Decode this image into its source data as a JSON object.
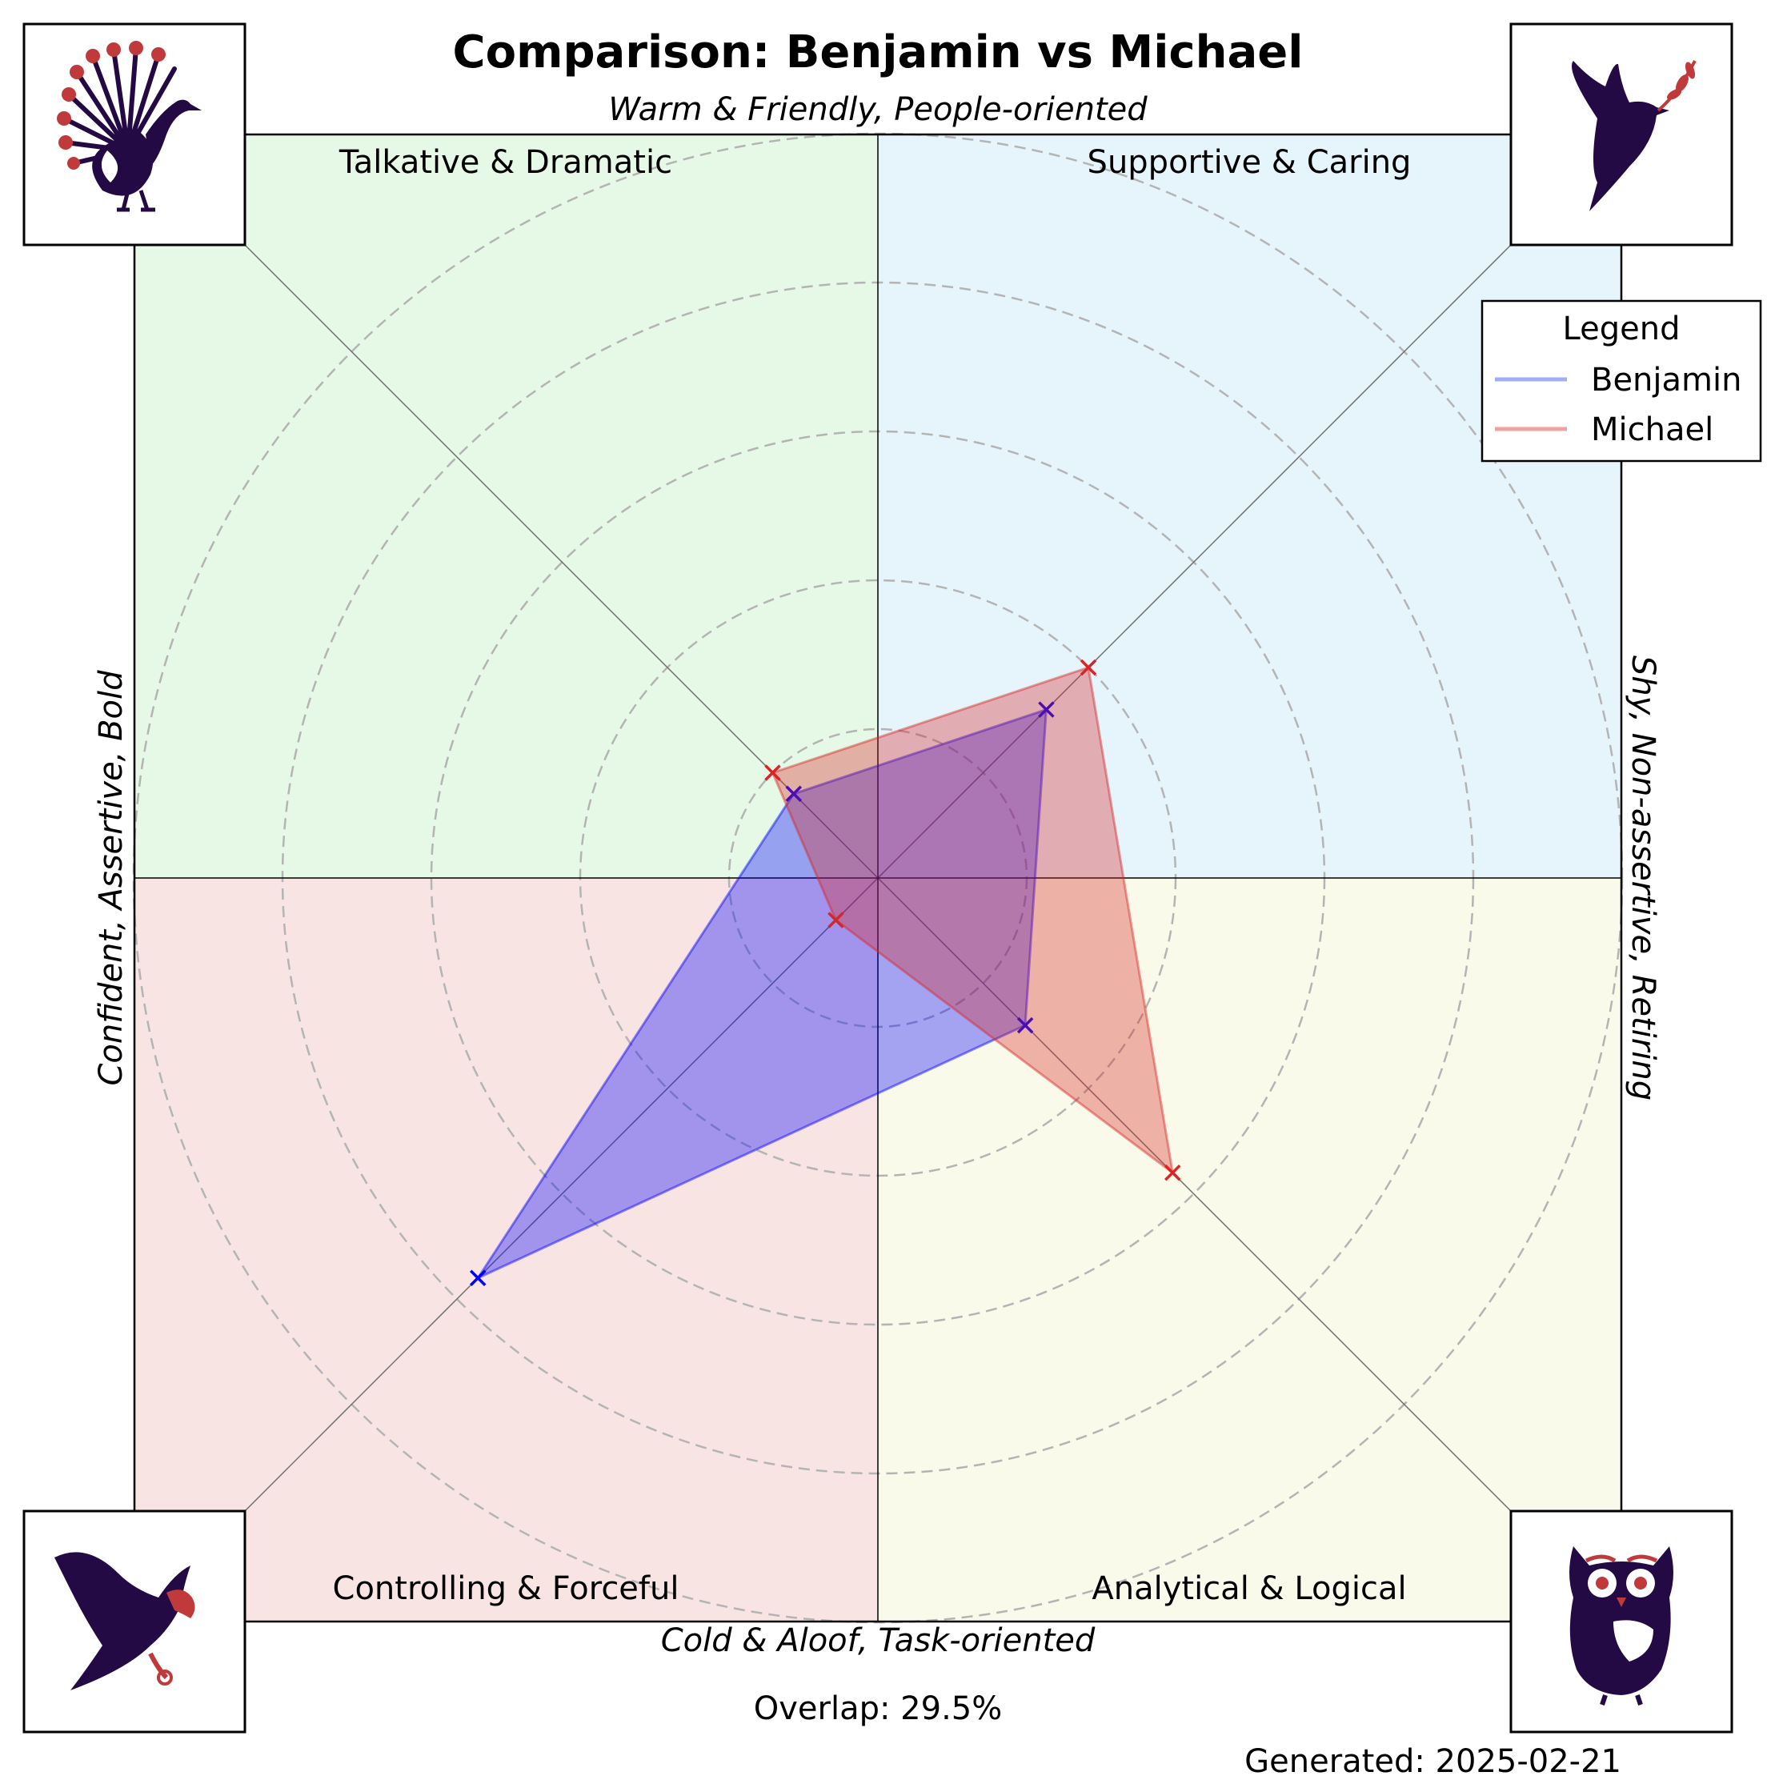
{
  "title": "Comparison: Benjamin vs Michael",
  "axes": {
    "top": "Warm & Friendly, People-oriented",
    "bottom": "Cold & Aloof, Task-oriented",
    "left": "Confident, Assertive, Bold",
    "right": "Shy, Non-assertive, Retiring"
  },
  "quadrants": {
    "top_left": "Talkative & Dramatic",
    "top_right": "Supportive & Caring",
    "bottom_left": "Controlling & Forceful",
    "bottom_right": "Analytical & Logical"
  },
  "icons": {
    "top_left": "peacock-icon",
    "top_right": "dove-icon",
    "bottom_left": "eagle-icon",
    "bottom_right": "owl-icon"
  },
  "legend": {
    "title": "Legend",
    "placement": "top-right"
  },
  "overlap_text": "Overlap: 29.5%",
  "generated_text": "Generated: 2025-02-21",
  "colors": {
    "quadrant_top_left": "#e6f8e6",
    "quadrant_top_right": "#e6f4fc",
    "quadrant_bottom_left": "#f9e4e4",
    "quadrant_bottom_right": "#fafaea",
    "icon_dark": "#240a44",
    "icon_accent": "#c0393b"
  },
  "chart_data": {
    "type": "radar",
    "axes": [
      "Supportive & Caring",
      "Talkative & Dramatic",
      "Controlling & Forceful",
      "Analytical & Logical"
    ],
    "angles_deg": [
      45,
      135,
      225,
      315
    ],
    "rmax": 5,
    "rings": [
      1,
      2,
      3,
      4,
      5
    ],
    "grid": true,
    "series": [
      {
        "name": "Benjamin",
        "color": "#0000ff",
        "values": [
          1.6,
          0.8,
          3.8,
          1.4
        ]
      },
      {
        "name": "Michael",
        "color": "#d62728",
        "values": [
          2.0,
          1.0,
          0.4,
          2.8
        ]
      }
    ]
  }
}
